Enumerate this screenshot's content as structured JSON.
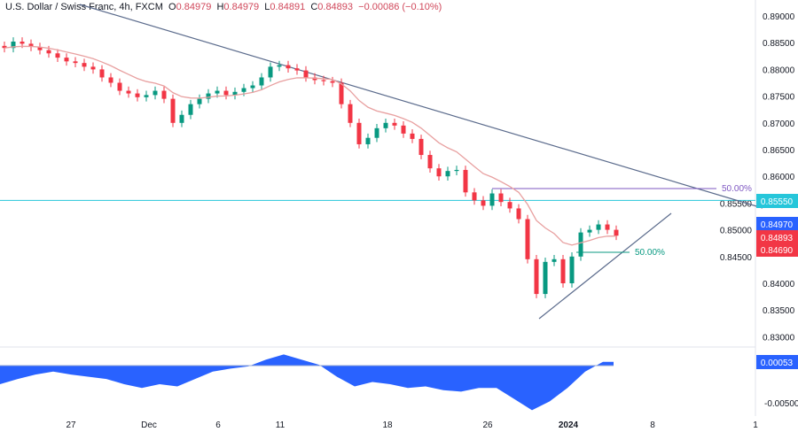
{
  "header": {
    "symbol": "U.S. Dollar / Swiss Franc, 4h, FXCM",
    "o_label": "O",
    "o": "0.84979",
    "h_label": "H",
    "h": "0.84979",
    "l_label": "L",
    "l": "0.84891",
    "c_label": "C",
    "c": "0.84893",
    "change": "−0.00086 (−0.10%)"
  },
  "chart_data": [
    {
      "type": "candlestick",
      "ylim": [
        0.8275,
        0.8915
      ],
      "y_ticks": [
        "0.89000",
        "0.88500",
        "0.88000",
        "0.87500",
        "0.87000",
        "0.86500",
        "0.86000",
        "0.85500",
        "0.85000",
        "0.84500",
        "0.84000",
        "0.83500",
        "0.83000"
      ],
      "x_ticks": [
        "27",
        "Dec",
        "6",
        "11",
        "18",
        "26",
        "2024",
        "8",
        "1"
      ],
      "closes": [
        0.884,
        0.8852,
        0.8848,
        0.8842,
        0.8836,
        0.883,
        0.8822,
        0.8815,
        0.8812,
        0.8805,
        0.88,
        0.8785,
        0.8775,
        0.876,
        0.8755,
        0.8748,
        0.8752,
        0.876,
        0.8745,
        0.87,
        0.8715,
        0.8735,
        0.8745,
        0.8755,
        0.876,
        0.8752,
        0.8758,
        0.8765,
        0.877,
        0.8785,
        0.8805,
        0.8808,
        0.8802,
        0.8798,
        0.8785,
        0.878,
        0.8778,
        0.8775,
        0.8735,
        0.87,
        0.866,
        0.8672,
        0.869,
        0.87,
        0.8695,
        0.868,
        0.867,
        0.864,
        0.8615,
        0.86,
        0.861,
        0.8612,
        0.857,
        0.8555,
        0.8545,
        0.8568,
        0.8552,
        0.854,
        0.852,
        0.8445,
        0.838,
        0.844,
        0.8445,
        0.84,
        0.845,
        0.8495,
        0.85,
        0.851,
        0.85,
        0.8489
      ],
      "level_line": {
        "value": 0.8555,
        "label": "0.85550",
        "color": "#26c6da"
      },
      "price_labels": [
        {
          "label": "0.84970",
          "color": "#2962ff"
        },
        {
          "label": "0.84893",
          "color": "#f23645"
        },
        {
          "label": "0.84690",
          "color": "#f23645"
        }
      ],
      "annotations": [
        {
          "label": "50.00%",
          "color": "#7e57c2"
        },
        {
          "label": "50.00%",
          "color": "#089981"
        }
      ],
      "colors": {
        "up": "#089981",
        "down": "#f23645",
        "ma": "#e8a0a0",
        "trend": "#5b6b8c"
      }
    },
    {
      "type": "area",
      "current_label": "0.00053",
      "y_ticks": [
        "-0.00500"
      ],
      "values": [
        -0.0025,
        -0.0018,
        -0.0012,
        -0.0008,
        -0.0012,
        -0.0015,
        -0.0018,
        -0.0025,
        -0.003,
        -0.0025,
        -0.0028,
        -0.0018,
        -0.0008,
        -0.0004,
        -0.0001,
        0.0008,
        0.0015,
        0.0008,
        0.0001,
        -0.0015,
        -0.0028,
        -0.0022,
        -0.0025,
        -0.003,
        -0.0028,
        -0.0033,
        -0.0035,
        -0.003,
        -0.003,
        -0.0045,
        -0.006,
        -0.0048,
        -0.003,
        -0.0008,
        0.0005,
        0.0005
      ],
      "color": "#2962ff"
    }
  ]
}
